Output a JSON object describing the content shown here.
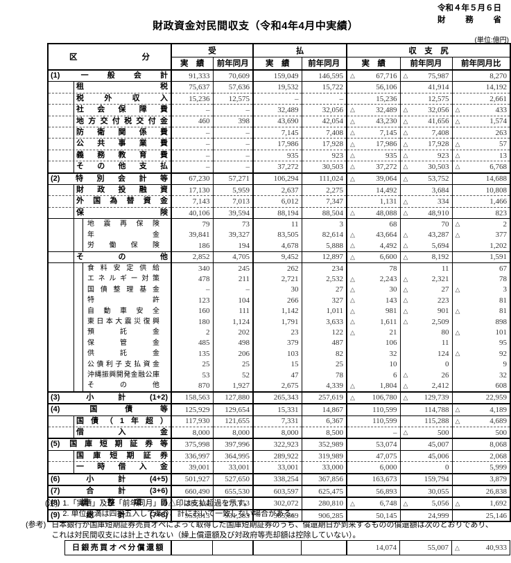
{
  "page": {
    "date": "令和４年５月６日",
    "agency": "財務省",
    "title": "財政資金対民間収支（令和4年4月中実績）",
    "unit_note": "(単位:億円)"
  },
  "table": {
    "headers": {
      "category": "区分",
      "receipts": "受",
      "payments": "払",
      "balance": "収　支　尻",
      "actual": "実　績",
      "prev_year_month": "前年同月",
      "yoy_change": "前年同月比"
    },
    "rows": [
      {
        "num": "(1)",
        "label": "一般会計",
        "lv": "major",
        "c": [
          "91,333",
          "70,609",
          "159,049",
          "146,595",
          "△ 67,716",
          "△ 75,987",
          "8,270"
        ]
      },
      {
        "label": "租税",
        "lv": "s1f",
        "c": [
          "75,637",
          "57,636",
          "19,532",
          "15,722",
          "56,106",
          "41,914",
          "14,192"
        ]
      },
      {
        "label": "税外収入",
        "lv": "s1",
        "c": [
          "15,236",
          "12,575",
          "–",
          "–",
          "15,236",
          "12,575",
          "2,661"
        ]
      },
      {
        "label": "社会保障費",
        "lv": "s1",
        "c": [
          "–",
          "–",
          "32,489",
          "32,056",
          "△ 32,489",
          "△ 32,056",
          "△ 433"
        ]
      },
      {
        "label": "地方交付税交付金",
        "lv": "s1",
        "c": [
          "460",
          "398",
          "43,690",
          "42,054",
          "△ 43,230",
          "△ 41,656",
          "△ 1,574"
        ]
      },
      {
        "label": "防衛関係費",
        "lv": "s1",
        "c": [
          "–",
          "–",
          "7,145",
          "7,408",
          "△ 7,145",
          "△ 7,408",
          "263"
        ]
      },
      {
        "label": "公共事業費",
        "lv": "s1",
        "c": [
          "–",
          "–",
          "17,986",
          "17,928",
          "△ 17,986",
          "△ 17,928",
          "△ 57"
        ]
      },
      {
        "label": "義務教育費",
        "lv": "s1",
        "c": [
          "–",
          "–",
          "935",
          "923",
          "△ 935",
          "△ 923",
          "△ 13"
        ]
      },
      {
        "label": "その他支払",
        "lv": "s1",
        "c": [
          "–",
          "–",
          "37,272",
          "30,503",
          "△ 37,272",
          "△ 30,503",
          "△ 6,768"
        ]
      },
      {
        "num": "(2)",
        "label": "特別会計等",
        "lv": "major",
        "c": [
          "67,230",
          "57,271",
          "106,294",
          "111,024",
          "△ 39,064",
          "△ 53,752",
          "14,688"
        ]
      },
      {
        "label": "財政投融資",
        "lv": "s1f",
        "c": [
          "17,130",
          "5,959",
          "2,637",
          "2,275",
          "14,492",
          "3,684",
          "10,808"
        ]
      },
      {
        "label": "外国為替資金",
        "lv": "s1",
        "c": [
          "7,143",
          "7,013",
          "6,012",
          "7,347",
          "1,131",
          "△ 334",
          "1,466"
        ]
      },
      {
        "label": "保険",
        "lv": "s1",
        "c": [
          "40,106",
          "39,594",
          "88,194",
          "88,504",
          "△ 48,088",
          "△ 48,910",
          "823"
        ]
      },
      {
        "label": "地震再保険",
        "lv": "s2f",
        "c": [
          "79",
          "73",
          "11",
          "3",
          "68",
          "70",
          "△ 2"
        ]
      },
      {
        "label": "年金",
        "lv": "s2",
        "c": [
          "39,841",
          "39,327",
          "83,505",
          "82,614",
          "△ 43,664",
          "△ 43,287",
          "△ 377"
        ]
      },
      {
        "label": "労働保険",
        "lv": "s2",
        "c": [
          "186",
          "194",
          "4,678",
          "5,888",
          "△ 4,492",
          "△ 5,694",
          "1,202"
        ]
      },
      {
        "label": "その他",
        "lv": "s1s",
        "c": [
          "2,852",
          "4,705",
          "9,452",
          "12,897",
          "△ 6,600",
          "△ 8,192",
          "1,591"
        ]
      },
      {
        "label": "食料安定供給",
        "lv": "s2f",
        "c": [
          "340",
          "245",
          "262",
          "234",
          "78",
          "11",
          "67"
        ]
      },
      {
        "label": "エネルギー対策",
        "lv": "s2",
        "c": [
          "478",
          "211",
          "2,721",
          "2,532",
          "△ 2,243",
          "△ 2,321",
          "78"
        ]
      },
      {
        "label": "国債整理基金",
        "lv": "s2",
        "c": [
          "–",
          "–",
          "30",
          "27",
          "△ 30",
          "△ 27",
          "△ 3"
        ]
      },
      {
        "label": "特許",
        "lv": "s2",
        "c": [
          "123",
          "104",
          "266",
          "327",
          "△ 143",
          "△ 223",
          "81"
        ]
      },
      {
        "label": "自動車安全",
        "lv": "s2",
        "c": [
          "160",
          "111",
          "1,142",
          "1,011",
          "△ 981",
          "△ 901",
          "△ 81"
        ]
      },
      {
        "label": "東日本大震災復興",
        "lv": "s2",
        "c": [
          "180",
          "1,124",
          "1,791",
          "3,633",
          "△ 1,611",
          "△ 2,509",
          "898"
        ]
      },
      {
        "label": "預託金",
        "lv": "s2",
        "c": [
          "2",
          "202",
          "23",
          "122",
          "△ 21",
          "80",
          "△ 101"
        ]
      },
      {
        "label": "保管金",
        "lv": "s2",
        "c": [
          "485",
          "498",
          "379",
          "487",
          "106",
          "11",
          "95"
        ]
      },
      {
        "label": "供託金",
        "lv": "s2",
        "c": [
          "135",
          "206",
          "103",
          "82",
          "32",
          "124",
          "△ 92"
        ]
      },
      {
        "label": "公債利子支払資金",
        "lv": "s2",
        "c": [
          "25",
          "25",
          "15",
          "25",
          "10",
          "0",
          "9"
        ]
      },
      {
        "label": "沖縄振興開発金融公庫",
        "lv": "s2",
        "c": [
          "53",
          "52",
          "47",
          "78",
          "6",
          "△ 26",
          "32"
        ]
      },
      {
        "label": "その他",
        "lv": "s2",
        "c": [
          "870",
          "1,927",
          "2,675",
          "4,339",
          "△ 1,804",
          "△ 2,412",
          "608"
        ]
      },
      {
        "num": "(3)",
        "label": "小計(1+2)",
        "lv": "major",
        "c": [
          "158,563",
          "127,880",
          "265,343",
          "257,619",
          "△ 106,780",
          "△ 129,739",
          "22,959"
        ]
      },
      {
        "num": "(4)",
        "label": "国債等",
        "lv": "major",
        "c": [
          "125,929",
          "129,654",
          "15,331",
          "14,867",
          "110,599",
          "114,788",
          "△ 4,189"
        ]
      },
      {
        "label": "国債（1年超）",
        "lv": "s1f",
        "c": [
          "117,930",
          "121,655",
          "7,331",
          "6,367",
          "110,599",
          "115,288",
          "△ 4,689"
        ]
      },
      {
        "label": "借入金",
        "lv": "s1",
        "c": [
          "8,000",
          "8,000",
          "8,000",
          "8,500",
          "–",
          "△ 500",
          "500"
        ]
      },
      {
        "num": "(5)",
        "label": "国庫短期証券等",
        "lv": "major",
        "c": [
          "375,998",
          "397,996",
          "322,923",
          "352,989",
          "53,074",
          "45,007",
          "8,068"
        ]
      },
      {
        "label": "国庫短期証券",
        "lv": "s1f",
        "c": [
          "336,997",
          "364,995",
          "289,922",
          "319,989",
          "47,075",
          "45,006",
          "2,068"
        ]
      },
      {
        "label": "一時借入金",
        "lv": "s1",
        "c": [
          "39,001",
          "33,001",
          "33,001",
          "33,000",
          "6,000",
          "0",
          "5,999"
        ]
      },
      {
        "num": "(6)",
        "label": "小計(4+5)",
        "lv": "major",
        "c": [
          "501,927",
          "527,650",
          "338,254",
          "367,856",
          "163,673",
          "159,794",
          "3,879"
        ]
      },
      {
        "num": "(7)",
        "label": "合計(3+6)",
        "lv": "major",
        "c": [
          "660,490",
          "655,530",
          "603,597",
          "625,475",
          "56,893",
          "30,055",
          "26,838"
        ]
      },
      {
        "num": "(8)",
        "label": "調整項目",
        "lv": "major",
        "c": [
          "295,324",
          "275,753",
          "302,072",
          "280,810",
          "△ 6,748",
          "△ 5,056",
          "△ 1,692"
        ]
      },
      {
        "num": "(9)",
        "label": "総計(7+8)",
        "lv": "major",
        "c": [
          "955,813",
          "931,283",
          "905,669",
          "906,285",
          "50,145",
          "24,999",
          "25,146"
        ]
      }
    ]
  },
  "notes": {
    "heading": "(注)",
    "line1": "1.「実績」及び「前年同月」の△印は支払超過を示す。",
    "line2": "2. 単位未満は四捨五入してあり、計において一致しない場合がある。"
  },
  "reference": {
    "heading": "(参考)",
    "line1": "日本銀行が国庫短期証券売買オペによって取得した国庫短期証券のうち、償還期日が到来するものの償還額は次のとおりであり、",
    "line2": "これは対民間収支には計上されない（繰上償還額及び対政府等売却額は控除していない）。"
  },
  "reference_table": {
    "label": "日銀売買オペ分償還額",
    "cells": [
      "",
      "",
      "",
      "",
      "14,074",
      "55,007",
      "△ 40,933"
    ]
  }
}
